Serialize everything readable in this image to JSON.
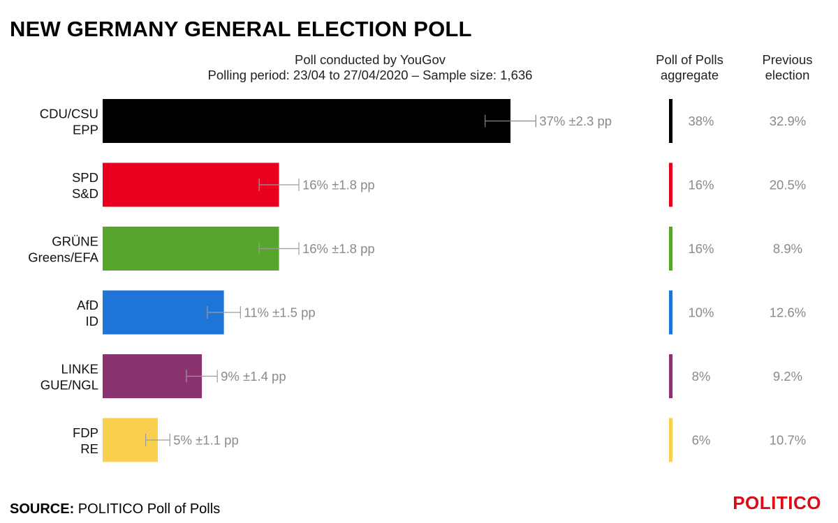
{
  "title": "NEW GERMANY GENERAL ELECTION POLL",
  "subtitle_line1": "Poll conducted by YouGov",
  "subtitle_line2": "Polling period: 23/04 to 27/04/2020 – Sample size: 1,636",
  "col_aggregate_line1": "Poll of Polls",
  "col_aggregate_line2": "aggregate",
  "col_previous_line1": "Previous",
  "col_previous_line2": "election",
  "source_label": "SOURCE:",
  "source_text": "POLITICO Poll of Polls",
  "logo": "POLITICO",
  "chart_data": {
    "type": "bar",
    "orientation": "horizontal",
    "xlim": [
      0,
      40
    ],
    "grid": false,
    "categories": [
      {
        "party": "CDU/CSU",
        "group": "EPP",
        "value": 37,
        "label": "37% ±2.3 pp",
        "error": 2.3,
        "color": "#000000",
        "aggregate": "38%",
        "previous": "32.9%"
      },
      {
        "party": "SPD",
        "group": "S&D",
        "value": 16,
        "label": "16% ±1.8 pp",
        "error": 1.8,
        "color": "#e8001e",
        "aggregate": "16%",
        "previous": "20.5%"
      },
      {
        "party": "GRÜNE",
        "group": "Greens/EFA",
        "value": 16,
        "label": "16% ±1.8 pp",
        "error": 1.8,
        "color": "#55a62a",
        "aggregate": "16%",
        "previous": "8.9%"
      },
      {
        "party": "AfD",
        "group": "ID",
        "value": 11,
        "label": "11% ±1.5 pp",
        "error": 1.5,
        "color": "#1f74d8",
        "aggregate": "10%",
        "previous": "12.6%"
      },
      {
        "party": "LINKE",
        "group": "GUE/NGL",
        "value": 9,
        "label": "9% ±1.4 pp",
        "error": 1.4,
        "color": "#8b336f",
        "aggregate": "8%",
        "previous": "9.2%"
      },
      {
        "party": "FDP",
        "group": "RE",
        "value": 5,
        "label": "5% ±1.1 pp",
        "error": 1.1,
        "color": "#f8cf4f",
        "aggregate": "6%",
        "previous": "10.7%"
      }
    ]
  }
}
